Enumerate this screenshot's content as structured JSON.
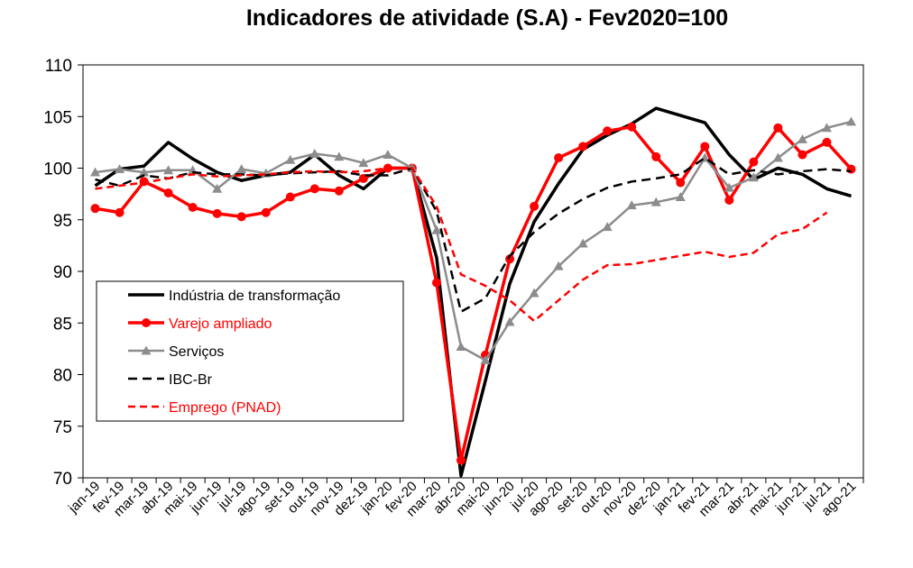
{
  "chart_data": {
    "type": "line",
    "title": "Indicadores de atividade (S.A)  - Fev2020=100",
    "xlabel": "",
    "ylabel": "",
    "ylim": [
      70,
      110
    ],
    "yticks": [
      70,
      75,
      80,
      85,
      90,
      95,
      100,
      105,
      110
    ],
    "grid": false,
    "legend_position": "left-middle",
    "categories": [
      "jan-19",
      "fev-19",
      "mar-19",
      "abr-19",
      "mai-19",
      "jun-19",
      "jul-19",
      "ago-19",
      "set-19",
      "out-19",
      "nov-19",
      "dez-19",
      "jan-20",
      "fev-20",
      "mar-20",
      "abr-20",
      "mai-20",
      "jun-20",
      "jul-20",
      "ago-20",
      "set-20",
      "out-20",
      "nov-20",
      "dez-20",
      "jan-21",
      "fev-21",
      "mar-21",
      "abr-21",
      "mai-21",
      "jun-21",
      "jul-21",
      "ago-21"
    ],
    "series": [
      {
        "name": "Indústria de transformação",
        "color": "#000000",
        "dash": "",
        "width": 3.5,
        "marker": "none",
        "values": [
          98.3,
          99.9,
          100.2,
          102.5,
          100.9,
          99.6,
          98.8,
          99.3,
          99.6,
          101.3,
          99.3,
          98.0,
          100.0,
          100.0,
          91.3,
          70.2,
          79.4,
          88.8,
          94.8,
          98.5,
          101.8,
          103.2,
          104.3,
          105.8,
          105.1,
          104.4,
          101.3,
          98.9,
          100.0,
          99.4,
          98.0,
          97.3
        ]
      },
      {
        "name": "Varejo ampliado",
        "color": "#ff0000",
        "dash": "",
        "width": 3.5,
        "marker": "circle",
        "values": [
          96.1,
          95.7,
          98.7,
          97.6,
          96.2,
          95.6,
          95.3,
          95.7,
          97.2,
          98.0,
          97.8,
          99.0,
          100.0,
          100.0,
          88.9,
          71.7,
          81.9,
          91.2,
          96.3,
          101.0,
          102.1,
          103.6,
          104.0,
          101.1,
          98.6,
          102.1,
          96.9,
          100.6,
          103.9,
          101.3,
          102.5,
          99.9
        ]
      },
      {
        "name": "Serviços",
        "color": "#8c8c8c",
        "dash": "",
        "width": 2.5,
        "marker": "triangle",
        "values": [
          99.6,
          99.9,
          99.6,
          99.8,
          99.8,
          98.0,
          99.9,
          99.5,
          100.8,
          101.4,
          101.1,
          100.5,
          101.3,
          100.0,
          94.0,
          82.7,
          81.4,
          85.1,
          87.9,
          90.5,
          92.7,
          94.3,
          96.4,
          96.7,
          97.2,
          101.0,
          98.1,
          99.1,
          101.0,
          102.8,
          103.9,
          104.5
        ]
      },
      {
        "name": "IBC-Br",
        "color": "#000000",
        "dash": "10,6",
        "width": 2.5,
        "marker": "none",
        "values": [
          98.9,
          98.3,
          99.3,
          99.0,
          99.6,
          99.4,
          99.4,
          99.3,
          99.5,
          99.6,
          99.7,
          99.3,
          99.3,
          100.0,
          95.8,
          86.1,
          87.4,
          91.5,
          93.8,
          95.6,
          97.0,
          98.1,
          98.7,
          99.0,
          99.4,
          101.0,
          99.4,
          99.8,
          99.4,
          99.7,
          99.9,
          99.7
        ]
      },
      {
        "name": "Emprego (PNAD)",
        "color": "#ff0000",
        "dash": "8,5",
        "width": 2.5,
        "marker": "none",
        "values": [
          98.0,
          98.3,
          98.6,
          99.0,
          99.4,
          99.2,
          99.3,
          99.4,
          99.6,
          99.7,
          99.6,
          99.7,
          100.0,
          100.0,
          96.3,
          89.7,
          88.6,
          87.2,
          85.2,
          87.2,
          89.2,
          90.6,
          90.7,
          91.1,
          91.5,
          91.9,
          91.4,
          91.8,
          93.6,
          94.1,
          95.7,
          null
        ]
      }
    ]
  }
}
